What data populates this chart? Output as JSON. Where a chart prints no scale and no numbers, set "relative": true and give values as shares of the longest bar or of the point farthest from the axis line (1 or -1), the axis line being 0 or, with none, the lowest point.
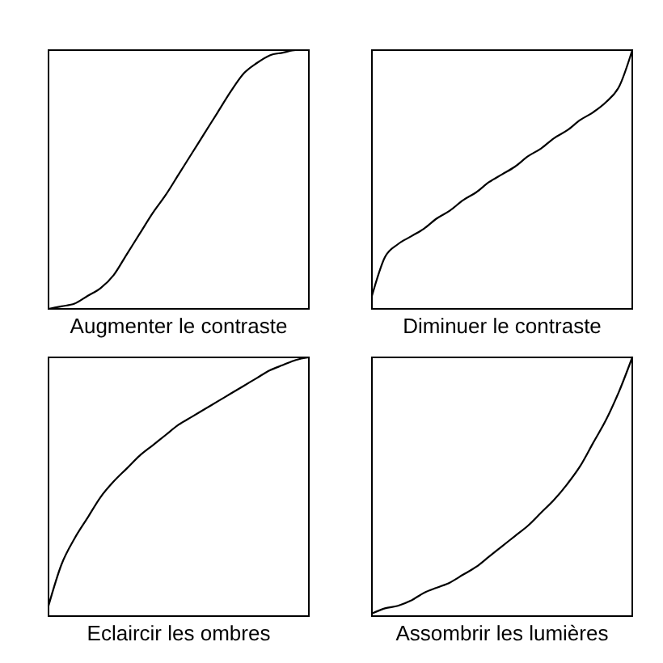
{
  "chart_data": [
    {
      "type": "line",
      "xlabel": "Augmenter le contraste",
      "relative": true,
      "color": "#000000",
      "categories": [
        null,
        null,
        null,
        null,
        null,
        null,
        null,
        null,
        null,
        null,
        null,
        null,
        null,
        null,
        null,
        null,
        null,
        null,
        null,
        null,
        null
      ],
      "values": [
        0,
        0.01,
        0.02,
        0.05,
        0.08,
        0.13,
        0.21,
        0.29,
        0.37,
        0.44,
        0.52,
        0.6,
        0.68,
        0.76,
        0.84,
        0.91,
        0.95,
        0.98,
        0.99,
        1,
        1
      ]
    },
    {
      "type": "line",
      "xlabel": "Diminuer le contraste",
      "relative": true,
      "color": "#000000",
      "categories": [
        null,
        null,
        null,
        null,
        null,
        null,
        null,
        null,
        null,
        null,
        null,
        null,
        null,
        null,
        null,
        null,
        null,
        null,
        null,
        null,
        null
      ],
      "values": [
        0.05,
        0.2,
        0.25,
        0.28,
        0.31,
        0.35,
        0.38,
        0.42,
        0.45,
        0.49,
        0.52,
        0.55,
        0.59,
        0.62,
        0.66,
        0.69,
        0.73,
        0.76,
        0.8,
        0.86,
        1
      ]
    },
    {
      "type": "line",
      "xlabel": "Eclaircir les ombres",
      "relative": true,
      "color": "#000000",
      "categories": [
        null,
        null,
        null,
        null,
        null,
        null,
        null,
        null,
        null,
        null,
        null,
        null,
        null,
        null,
        null,
        null,
        null,
        null,
        null,
        null,
        null
      ],
      "values": [
        0.04,
        0.2,
        0.3,
        0.38,
        0.46,
        0.52,
        0.57,
        0.62,
        0.66,
        0.7,
        0.74,
        0.77,
        0.8,
        0.83,
        0.86,
        0.89,
        0.92,
        0.95,
        0.97,
        0.99,
        1
      ]
    },
    {
      "type": "line",
      "xlabel": "Assombrir les lumières",
      "relative": true,
      "color": "#000000",
      "categories": [
        null,
        null,
        null,
        null,
        null,
        null,
        null,
        null,
        null,
        null,
        null,
        null,
        null,
        null,
        null,
        null,
        null,
        null,
        null,
        null,
        null
      ],
      "values": [
        0.01,
        0.03,
        0.04,
        0.06,
        0.09,
        0.11,
        0.13,
        0.16,
        0.19,
        0.23,
        0.27,
        0.31,
        0.35,
        0.4,
        0.45,
        0.51,
        0.58,
        0.67,
        0.76,
        0.87,
        1
      ]
    }
  ]
}
